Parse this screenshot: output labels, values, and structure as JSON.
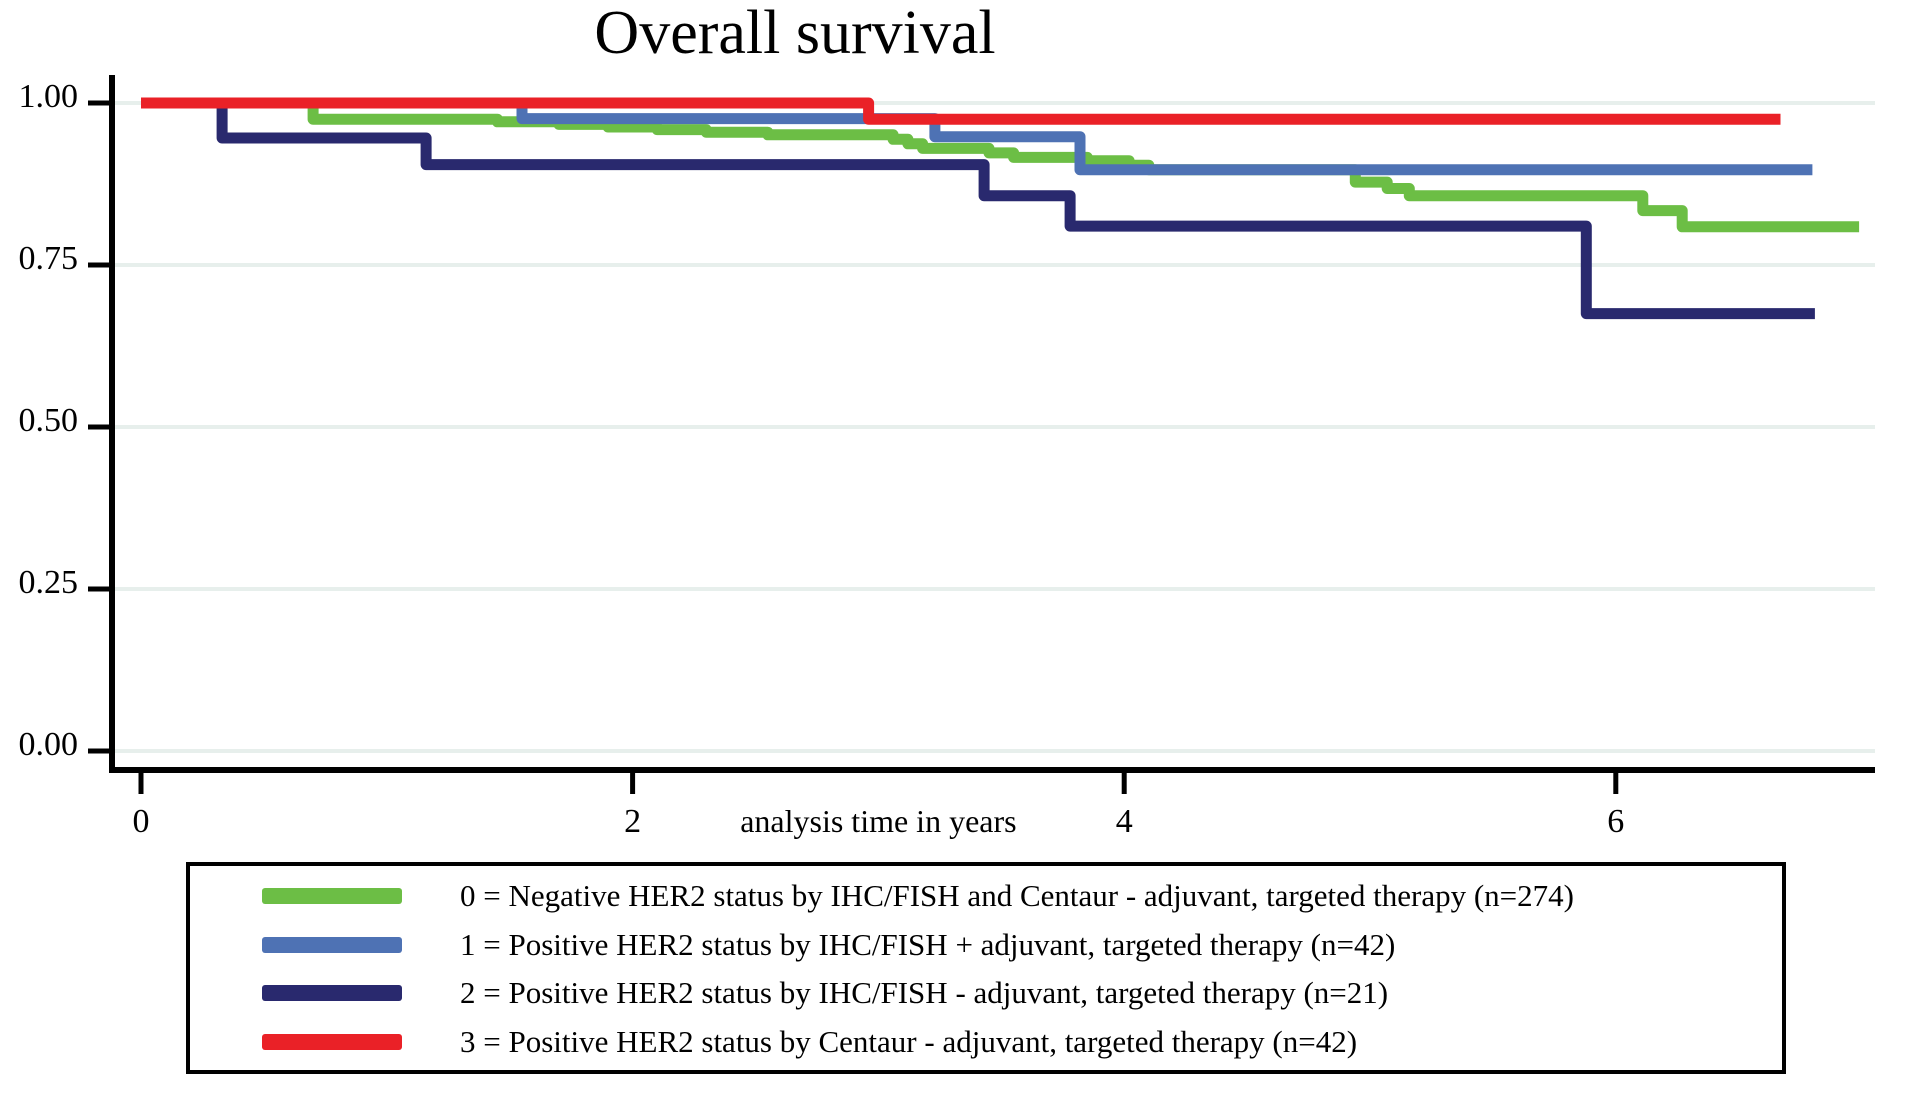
{
  "page": {
    "background": "#ffffff"
  },
  "chart_data": {
    "type": "line",
    "variant": "kaplan-meier-step",
    "title": "Overall survival",
    "xlabel": "analysis time in years",
    "ylabel": "",
    "xlim": [
      0,
      7.2
    ],
    "ylim": [
      0,
      1
    ],
    "grid": true,
    "grid_color": "#e7efec",
    "axis_color": "#000000",
    "legend_position": "bottom",
    "x_axis": {
      "ticks": [
        {
          "value": 0,
          "label": "0"
        },
        {
          "value": 2,
          "label": "2"
        },
        {
          "value": 4,
          "label": "4"
        },
        {
          "value": 6,
          "label": "6"
        }
      ]
    },
    "y_axis": {
      "ticks": [
        {
          "value": 1.0,
          "label": "1.00"
        },
        {
          "value": 0.75,
          "label": "0.75"
        },
        {
          "value": 0.5,
          "label": "0.50"
        },
        {
          "value": 0.25,
          "label": "0.25"
        },
        {
          "value": 0.0,
          "label": "0.00"
        }
      ]
    },
    "series": [
      {
        "id": "0",
        "label": "0 = Negative HER2 status by IHC/FISH and Centaur - adjuvant, targeted therapy (n=274)",
        "color": "#6cbe45",
        "steps": [
          [
            0,
            1.0
          ],
          [
            0.7,
            0.975
          ],
          [
            1.45,
            0.971
          ],
          [
            1.7,
            0.967
          ],
          [
            1.9,
            0.963
          ],
          [
            2.1,
            0.959
          ],
          [
            2.3,
            0.955
          ],
          [
            2.55,
            0.951
          ],
          [
            3.06,
            0.944
          ],
          [
            3.12,
            0.937
          ],
          [
            3.18,
            0.93
          ],
          [
            3.45,
            0.923
          ],
          [
            3.55,
            0.916
          ],
          [
            3.85,
            0.911
          ],
          [
            4.02,
            0.904
          ],
          [
            4.1,
            0.897
          ],
          [
            4.94,
            0.878
          ],
          [
            5.07,
            0.868
          ],
          [
            5.16,
            0.857
          ],
          [
            6.11,
            0.834
          ],
          [
            6.27,
            0.809
          ]
        ],
        "end": 6.99
      },
      {
        "id": "1",
        "label": "1 = Positive HER2 status by IHC/FISH + adjuvant, targeted therapy (n=42)",
        "color": "#4e72b4",
        "steps": [
          [
            0,
            1.0
          ],
          [
            1.55,
            0.976
          ],
          [
            3.23,
            0.948
          ],
          [
            3.82,
            0.897
          ]
        ],
        "end": 6.8
      },
      {
        "id": "2",
        "label": "2 = Positive HER2 status by IHC/FISH - adjuvant, targeted therapy (n=21)",
        "color": "#29296e",
        "steps": [
          [
            0,
            1.0
          ],
          [
            0.33,
            0.946
          ],
          [
            1.16,
            0.905
          ],
          [
            3.43,
            0.857
          ],
          [
            3.78,
            0.81
          ],
          [
            5.88,
            0.675
          ]
        ],
        "end": 6.81
      },
      {
        "id": "3",
        "label": "3 = Positive HER2 status by Centaur - adjuvant, targeted therapy (n=42)",
        "color": "#ea2127",
        "steps": [
          [
            0,
            1.0
          ],
          [
            2.96,
            0.975
          ]
        ],
        "end": 6.67
      }
    ]
  }
}
